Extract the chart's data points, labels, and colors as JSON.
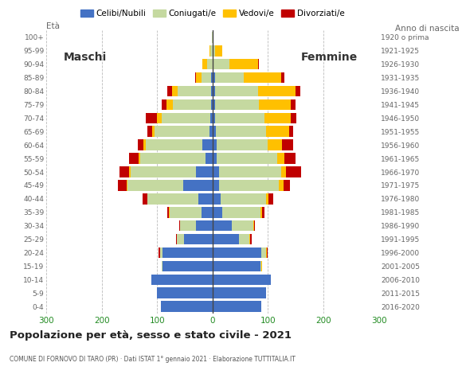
{
  "age_groups": [
    "0-4",
    "5-9",
    "10-14",
    "15-19",
    "20-24",
    "25-29",
    "30-34",
    "35-39",
    "40-44",
    "45-49",
    "50-54",
    "55-59",
    "60-64",
    "65-69",
    "70-74",
    "75-79",
    "80-84",
    "85-89",
    "90-94",
    "95-99",
    "100+"
  ],
  "birth_years": [
    "2016-2020",
    "2011-2015",
    "2006-2010",
    "2001-2005",
    "1996-2000",
    "1991-1995",
    "1986-1990",
    "1981-1985",
    "1976-1980",
    "1971-1975",
    "1966-1970",
    "1961-1965",
    "1956-1960",
    "1951-1955",
    "1946-1950",
    "1941-1945",
    "1936-1940",
    "1931-1935",
    "1926-1930",
    "1921-1925",
    "1920 o prima"
  ],
  "male_celibe": [
    93,
    100,
    110,
    90,
    90,
    52,
    30,
    20,
    25,
    53,
    30,
    12,
    18,
    5,
    4,
    3,
    3,
    2,
    0,
    0,
    0
  ],
  "male_coniugato": [
    0,
    0,
    0,
    2,
    5,
    12,
    28,
    58,
    92,
    100,
    118,
    118,
    102,
    100,
    88,
    68,
    60,
    18,
    10,
    4,
    1
  ],
  "male_vedovo": [
    0,
    0,
    0,
    0,
    0,
    0,
    0,
    1,
    1,
    2,
    2,
    3,
    5,
    4,
    8,
    12,
    10,
    10,
    8,
    1,
    0
  ],
  "male_divorziato": [
    0,
    0,
    0,
    0,
    2,
    2,
    2,
    2,
    8,
    15,
    18,
    18,
    10,
    8,
    20,
    8,
    8,
    2,
    0,
    0,
    0
  ],
  "fem_nubile": [
    88,
    96,
    105,
    86,
    88,
    48,
    35,
    18,
    14,
    12,
    12,
    8,
    8,
    6,
    5,
    5,
    4,
    4,
    2,
    0,
    0
  ],
  "fem_coniugata": [
    0,
    0,
    0,
    2,
    8,
    18,
    38,
    68,
    82,
    108,
    112,
    108,
    92,
    90,
    88,
    78,
    78,
    52,
    28,
    5,
    0
  ],
  "fem_vedova": [
    0,
    0,
    0,
    2,
    2,
    2,
    2,
    3,
    5,
    8,
    8,
    14,
    26,
    42,
    48,
    58,
    68,
    68,
    52,
    12,
    2
  ],
  "fem_divorziata": [
    0,
    0,
    0,
    0,
    2,
    2,
    2,
    4,
    8,
    12,
    28,
    20,
    20,
    8,
    10,
    8,
    8,
    5,
    2,
    0,
    0
  ],
  "colors": {
    "celibe": "#4472c4",
    "coniugato": "#c5d9a0",
    "vedovo": "#ffc000",
    "divorziato": "#c00000"
  },
  "xlim": 300,
  "title": "Popolazione per età, sesso e stato civile - 2021",
  "subtitle": "COMUNE DI FORNOVO DI TARO (PR) · Dati ISTAT 1° gennaio 2021 · Elaborazione TUTTITALIA.IT",
  "ylabel_left": "Età",
  "ylabel_right": "Anno di nascita",
  "label_maschi": "Maschi",
  "label_femmine": "Femmine",
  "legend_labels": [
    "Celibi/Nubili",
    "Coniugati/e",
    "Vedovi/e",
    "Divorziati/e"
  ],
  "background_color": "#ffffff"
}
